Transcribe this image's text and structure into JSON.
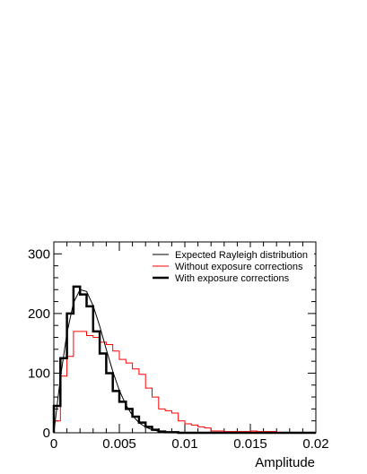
{
  "chart_data": {
    "type": "line",
    "title": "",
    "xlabel": "Amplitude",
    "ylabel": "",
    "xlim": [
      0,
      0.02
    ],
    "ylim": [
      0,
      320
    ],
    "x_ticks": [
      0,
      0.005,
      0.01,
      0.015,
      0.02
    ],
    "x_tick_labels": [
      "0",
      "0.005",
      "0.01",
      "0.015",
      "0.02"
    ],
    "y_ticks": [
      0,
      100,
      200,
      300
    ],
    "y_tick_labels": [
      "0",
      "100",
      "200",
      "300"
    ],
    "grid": false,
    "legend_position": "top-right",
    "bin_edges": [
      0,
      0.0005,
      0.001,
      0.0015,
      0.002,
      0.0025,
      0.003,
      0.0035,
      0.004,
      0.0045,
      0.005,
      0.0055,
      0.006,
      0.0065,
      0.007,
      0.0075,
      0.008,
      0.0085,
      0.009,
      0.0095,
      0.01,
      0.0105,
      0.011,
      0.0115,
      0.012,
      0.0125,
      0.013,
      0.0135,
      0.014,
      0.0145,
      0.015,
      0.0155,
      0.016,
      0.0165,
      0.017,
      0.0175,
      0.018,
      0.0185,
      0.019,
      0.0195,
      0.02
    ],
    "series": [
      {
        "name": "Expected Rayleigh distribution",
        "kind": "curve",
        "color": "#000000",
        "x": [
          0,
          0.0005,
          0.001,
          0.0015,
          0.002,
          0.0025,
          0.003,
          0.0035,
          0.004,
          0.0045,
          0.005,
          0.0055,
          0.006,
          0.0065,
          0.007,
          0.0075,
          0.008,
          0.0085,
          0.009,
          0.0095,
          0.01,
          0.011,
          0.012,
          0.014,
          0.016,
          0.02
        ],
        "values": [
          0,
          92,
          167,
          218,
          240,
          237,
          213,
          179,
          140,
          103,
          71,
          47,
          29,
          17,
          9.6,
          5.1,
          2.6,
          1.2,
          0.6,
          0.25,
          0.1,
          0,
          0,
          0,
          0,
          0
        ]
      },
      {
        "name": "Without exposure corrections",
        "kind": "histogram",
        "color": "#ff0000",
        "values": [
          20,
          95,
          128,
          170,
          170,
          163,
          160,
          152,
          148,
          137,
          123,
          117,
          107,
          98,
          75,
          60,
          40,
          37,
          33,
          20,
          15,
          13,
          10,
          8,
          3,
          3,
          2,
          2,
          2,
          2,
          3,
          2,
          2,
          2,
          0,
          0,
          0,
          0,
          0,
          0
        ]
      },
      {
        "name": "With exposure corrections",
        "kind": "histogram",
        "color": "#000000",
        "values": [
          45,
          125,
          200,
          245,
          232,
          212,
          170,
          133,
          100,
          70,
          52,
          40,
          27,
          17,
          10,
          5,
          2,
          1,
          1,
          0,
          0,
          0,
          0,
          0,
          0,
          0,
          0,
          0,
          0,
          0,
          0,
          0,
          0,
          0,
          0,
          0,
          0,
          0,
          0,
          0
        ]
      }
    ]
  }
}
